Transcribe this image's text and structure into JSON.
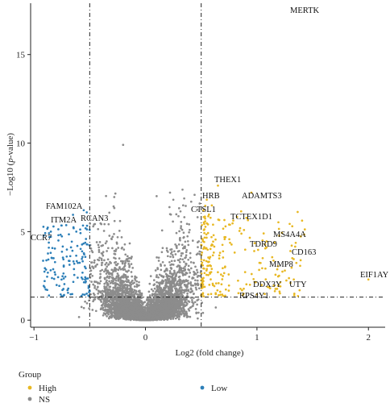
{
  "chart_data": {
    "type": "scatter",
    "xlabel": "Log2 (fold change)",
    "ylabel_prefix": "−Log10 (",
    "ylabel_italic": "p",
    "ylabel_suffix": "-value)",
    "xlim": [
      -1.03,
      2.15
    ],
    "ylim": [
      -0.4,
      17.9
    ],
    "x_ticks": [
      -1,
      0,
      1,
      2
    ],
    "x_tick_labels": [
      "−1",
      "0",
      "1",
      "2"
    ],
    "y_ticks": [
      0,
      5,
      10,
      15
    ],
    "y_tick_labels": [
      "0",
      "5",
      "10",
      "15"
    ],
    "fc_thresholds": [
      -0.5,
      0.5
    ],
    "p_threshold": 1.3,
    "colors": {
      "High": "#E8B823",
      "NS": "#8C8C8C",
      "Low": "#2C7FB8"
    },
    "legend": {
      "title": "Group",
      "position": "bottom-left",
      "entries": [
        {
          "group": "High",
          "label": "High"
        },
        {
          "group": "NS",
          "label": "NS"
        },
        {
          "group": "Low",
          "label": "Low"
        }
      ]
    },
    "labeled_points": [
      {
        "gene": "MERTK",
        "x": 1.48,
        "y": 17.95,
        "group": "High"
      },
      {
        "gene": "THEX1",
        "x": 0.65,
        "y": 7.6,
        "group": "High"
      },
      {
        "gene": "HRB",
        "x": 0.55,
        "y": 6.8,
        "group": "High"
      },
      {
        "gene": "ADAMTS3",
        "x": 0.95,
        "y": 7.2,
        "group": "High"
      },
      {
        "gene": "CTSL1",
        "x": 0.52,
        "y": 6.2,
        "group": "High"
      },
      {
        "gene": "TCTEX1D1",
        "x": 0.75,
        "y": 5.4,
        "group": "High"
      },
      {
        "gene": "MS4A4A",
        "x": 1.05,
        "y": 4.5,
        "group": "High"
      },
      {
        "gene": "TDRD9",
        "x": 0.98,
        "y": 4.35,
        "group": "High"
      },
      {
        "gene": "CD163",
        "x": 1.3,
        "y": 3.9,
        "group": "High"
      },
      {
        "gene": "MMP8",
        "x": 1.25,
        "y": 2.8,
        "group": "High"
      },
      {
        "gene": "DDX3Y",
        "x": 0.98,
        "y": 2.15,
        "group": "High"
      },
      {
        "gene": "UTY",
        "x": 1.3,
        "y": 2.1,
        "group": "High"
      },
      {
        "gene": "RPS4Y1",
        "x": 0.88,
        "y": 1.5,
        "group": "High"
      },
      {
        "gene": "EIF1AY",
        "x": 2.0,
        "y": 2.3,
        "group": "High"
      },
      {
        "gene": "FAM102A",
        "x": -0.65,
        "y": 5.95,
        "group": "Low"
      },
      {
        "gene": "ITM2A",
        "x": -0.62,
        "y": 5.0,
        "group": "Low"
      },
      {
        "gene": "RCAN3",
        "x": -0.5,
        "y": 5.1,
        "group": "Low"
      },
      {
        "gene": "CCR7",
        "x": -0.85,
        "y": 3.8,
        "group": "Low"
      }
    ]
  }
}
